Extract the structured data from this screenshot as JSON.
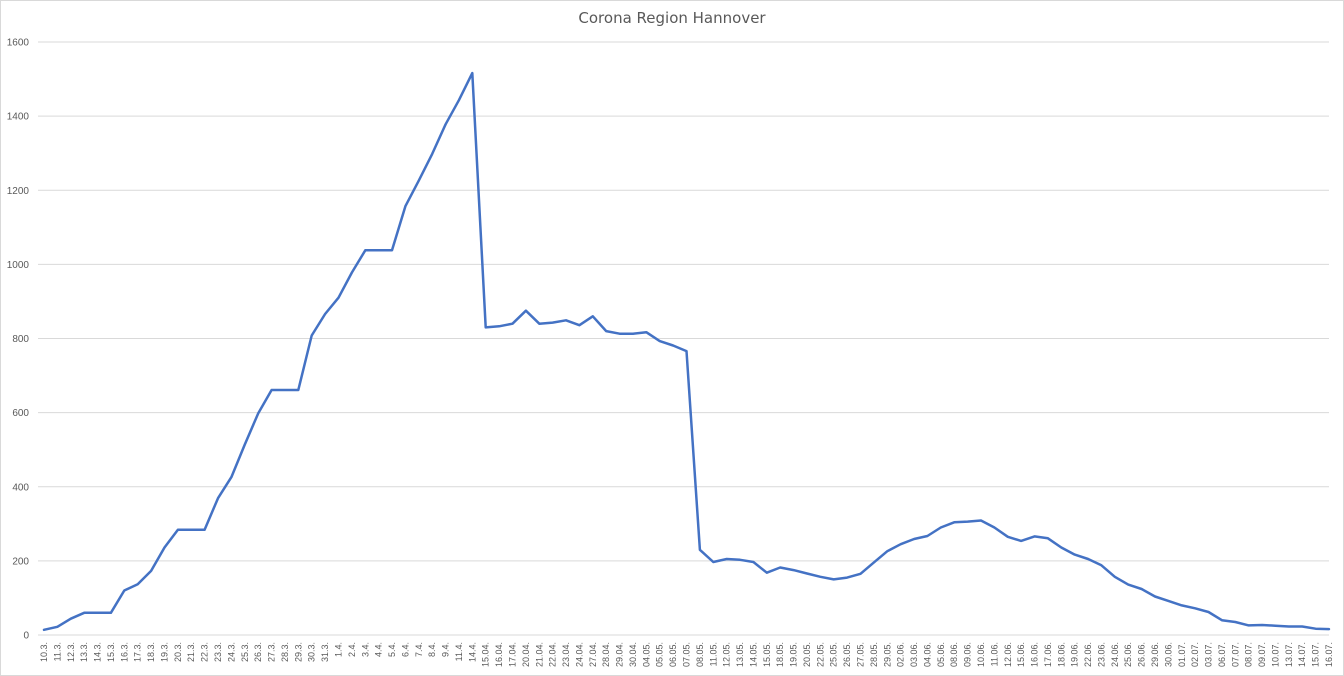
{
  "chart_data": {
    "type": "line",
    "title": "Corona Region Hannover",
    "xlabel": "",
    "ylabel": "",
    "ylim": [
      0,
      1600
    ],
    "yticks": [
      0,
      200,
      400,
      600,
      800,
      1000,
      1200,
      1400,
      1600
    ],
    "grid": true,
    "legend": "none",
    "line_color": "#4472C4",
    "categories": [
      "10.3.",
      "11.3.",
      "12.3.",
      "13.3.",
      "14.3.",
      "15.3.",
      "16.3.",
      "17.3.",
      "18.3.",
      "19.3.",
      "20.3.",
      "21.3.",
      "22.3.",
      "23.3.",
      "24.3.",
      "25.3.",
      "26.3.",
      "27.3.",
      "28.3.",
      "29.3.",
      "30.3.",
      "31.3.",
      "1.4.",
      "2.4.",
      "3.4.",
      "4.4.",
      "5.4.",
      "6.4.",
      "7.4.",
      "8.4.",
      "9.4.",
      "11.4.",
      "14.4.",
      "15.04.",
      "16.04.",
      "17.04.",
      "20.04.",
      "21.04.",
      "22.04.",
      "23.04.",
      "24.04.",
      "27.04.",
      "28.04.",
      "29.04.",
      "30.04.",
      "04.05.",
      "05.05.",
      "06.05.",
      "07.05.",
      "08.05.",
      "11.05.",
      "12.05.",
      "13.05.",
      "14.05.",
      "15.05.",
      "18.05.",
      "19.05.",
      "20.05.",
      "22.05.",
      "25.05.",
      "26.05.",
      "27.05.",
      "28.05.",
      "29.05.",
      "02.06.",
      "03.06.",
      "04.06.",
      "05.06.",
      "08.06.",
      "09.06.",
      "10.06.",
      "11.06.",
      "12.06.",
      "15.06.",
      "16.06.",
      "17.06.",
      "18.06.",
      "19.06.",
      "22.06.",
      "23.06.",
      "24.06.",
      "25.06.",
      "26.06.",
      "29.06.",
      "30.06.",
      "01.07.",
      "02.07.",
      "03.07.",
      "06.07.",
      "07.07.",
      "08.07.",
      "09.07.",
      "10.07.",
      "13.07.",
      "14.07.",
      "15.07.",
      "16.07."
    ],
    "values": [
      14,
      22,
      44,
      60,
      60,
      60,
      120,
      137,
      173,
      236,
      284,
      284,
      284,
      369,
      426,
      514,
      598,
      661,
      661,
      661,
      808,
      866,
      910,
      978,
      1038,
      1038,
      1038,
      1157,
      1226,
      1298,
      1378,
      1443,
      1516,
      830,
      833,
      840,
      875,
      840,
      843,
      849,
      836,
      860,
      820,
      813,
      813,
      817,
      793,
      781,
      766,
      230,
      197,
      205,
      203,
      197,
      168,
      182,
      175,
      166,
      157,
      150,
      155,
      165,
      196,
      226,
      245,
      259,
      267,
      290,
      304,
      306,
      309,
      290,
      265,
      254,
      266,
      261,
      236,
      217,
      205,
      188,
      157,
      136,
      124,
      104,
      92,
      80,
      72,
      62,
      40,
      35,
      26,
      27,
      25,
      23,
      23,
      17,
      16
    ]
  }
}
